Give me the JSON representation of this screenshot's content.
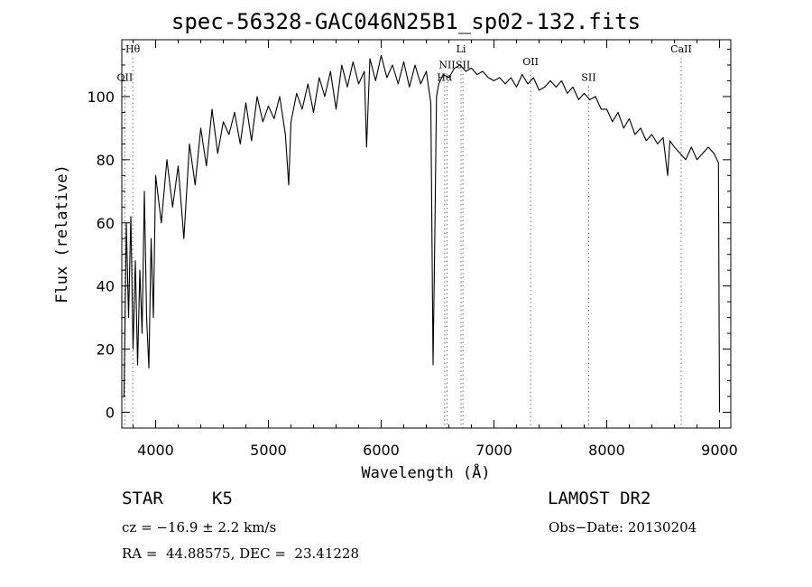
{
  "chart_data": {
    "type": "line",
    "title": "spec-56328-GAC046N25B1_sp02-132.fits",
    "xlabel": "Wavelength (Å)",
    "ylabel": "Flux (relative)",
    "xlim": [
      3700,
      9100
    ],
    "ylim": [
      -5,
      118
    ],
    "x_ticks": [
      4000,
      5000,
      6000,
      7000,
      8000,
      9000
    ],
    "y_ticks": [
      0,
      20,
      40,
      60,
      80,
      100
    ],
    "grid": false,
    "line_color": "#000000",
    "series": [
      {
        "x": [
          3720,
          3740,
          3760,
          3780,
          3800,
          3820,
          3840,
          3860,
          3880,
          3900,
          3920,
          3940,
          3960,
          3980,
          4000,
          4050,
          4100,
          4150,
          4200,
          4250,
          4300,
          4350,
          4400,
          4450,
          4500,
          4550,
          4600,
          4650,
          4700,
          4750,
          4800,
          4850,
          4900,
          4950,
          5000,
          5050,
          5100,
          5150,
          5180,
          5200,
          5250,
          5300,
          5350,
          5400,
          5450,
          5500,
          5550,
          5600,
          5650,
          5700,
          5750,
          5800,
          5850,
          5870,
          5900,
          5950,
          6000,
          6050,
          6100,
          6150,
          6200,
          6250,
          6300,
          6350,
          6400,
          6440,
          6460,
          6475,
          6490,
          6510,
          6550,
          6600,
          6650,
          6700,
          6750,
          6800,
          6850,
          6900,
          6950,
          7000,
          7050,
          7100,
          7150,
          7200,
          7250,
          7300,
          7350,
          7400,
          7450,
          7500,
          7550,
          7600,
          7650,
          7700,
          7750,
          7800,
          7850,
          7900,
          7950,
          8000,
          8050,
          8100,
          8150,
          8200,
          8250,
          8300,
          8350,
          8400,
          8450,
          8500,
          8540,
          8560,
          8600,
          8650,
          8700,
          8750,
          8800,
          8850,
          8900,
          8950,
          8990,
          9000
        ],
        "y": [
          5,
          60,
          30,
          62,
          20,
          48,
          15,
          45,
          25,
          70,
          30,
          14,
          55,
          30,
          75,
          60,
          80,
          65,
          78,
          55,
          85,
          72,
          90,
          78,
          96,
          82,
          92,
          88,
          95,
          85,
          98,
          86,
          100,
          92,
          97,
          93,
          100,
          88,
          72,
          92,
          101,
          96,
          104,
          95,
          106,
          100,
          108,
          96,
          110,
          103,
          111,
          104,
          108,
          84,
          112,
          105,
          113,
          106,
          110,
          104,
          111,
          103,
          110,
          104,
          108,
          98,
          15,
          55,
          100,
          104,
          107,
          106,
          109,
          110,
          108,
          109,
          107,
          108,
          106,
          105,
          106,
          104,
          106,
          103,
          107,
          104,
          106,
          102,
          103,
          105,
          103,
          105,
          101,
          103,
          99,
          101,
          99,
          100,
          96,
          96,
          92,
          95,
          90,
          93,
          88,
          90,
          86,
          88,
          85,
          87,
          75,
          86,
          84,
          82,
          80,
          84,
          80,
          82,
          84,
          82,
          79,
          0
        ]
      }
    ],
    "line_markers": [
      {
        "label": "OII",
        "x": 3727,
        "label_y": 105
      },
      {
        "label": "Hθ",
        "x": 3797,
        "label_y": 114
      },
      {
        "label": "Hα",
        "x": 6563,
        "label_y": 105
      },
      {
        "label": "NII",
        "x": 6584,
        "label_y": 109
      },
      {
        "label": "Li",
        "x": 6708,
        "label_y": 114
      },
      {
        "label": "SII",
        "x": 6725,
        "label_y": 109
      },
      {
        "label": "OII",
        "x": 7325,
        "label_y": 110
      },
      {
        "label": "SII",
        "x": 7840,
        "label_y": 105
      },
      {
        "label": "CaII",
        "x": 8660,
        "label_y": 114
      }
    ]
  },
  "info": {
    "object_class": "STAR",
    "subclass": "K5",
    "survey": "LAMOST DR2",
    "cz": "cz = −16.9 ± 2.2 km/s",
    "obs_date": "Obs−Date: 20130204",
    "radec": "RA =  44.88575, DEC =  23.41228"
  }
}
